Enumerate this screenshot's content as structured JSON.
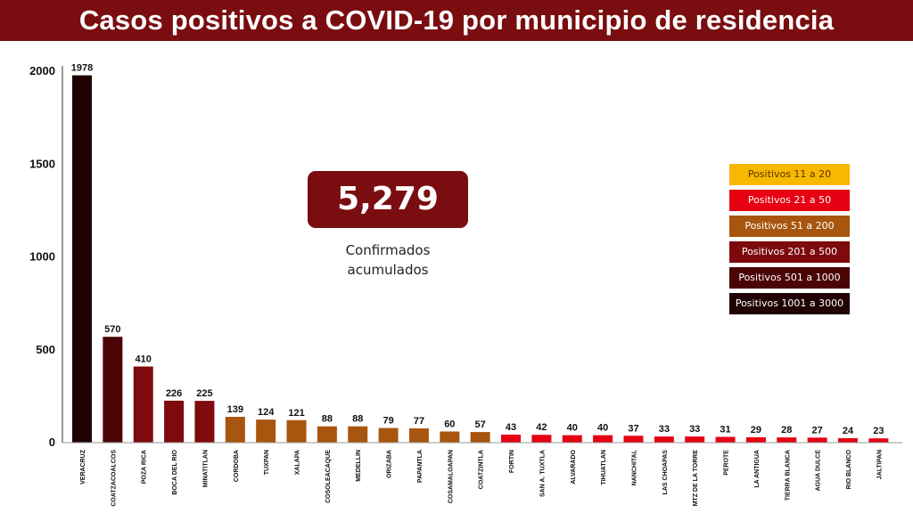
{
  "header": {
    "title": "Casos positivos a COVID-19  por municipio de residencia"
  },
  "summary": {
    "total": "5,279",
    "caption_line1": "Confirmados",
    "caption_line2": "acumulados"
  },
  "legend": [
    {
      "label": "Positivos 11 a 20",
      "color": "#f9b800"
    },
    {
      "label": "Positivos 21 a 50",
      "color": "#e60012"
    },
    {
      "label": "Positivos 51 a 200",
      "color": "#a8560f"
    },
    {
      "label": "Positivos 201 a 500",
      "color": "#7e0a0d"
    },
    {
      "label": "Positivos 501 a 1000",
      "color": "#4a0406"
    },
    {
      "label": "Positivos 1001 a 3000",
      "color": "#200203"
    }
  ],
  "chart_data": {
    "type": "bar",
    "title": "Casos positivos a COVID-19  por municipio de residencia",
    "xlabel": "",
    "ylabel": "",
    "ylim": [
      0,
      2000
    ],
    "yticks": [
      0,
      500,
      1000,
      1500,
      2000
    ],
    "grid": false,
    "legend_position": "right",
    "categories": [
      "VERACRUZ",
      "COATZACOALCOS",
      "POZA RICA",
      "BOCA DEL RIO",
      "MINATITLAN",
      "CORDOBA",
      "TUXPAN",
      "XALAPA",
      "COSOLEACAQUE",
      "MEDELLIN",
      "ORIZABA",
      "PAPANTLA",
      "COSAMALOAPAN",
      "COATZINTLA",
      "FORTIN",
      "SAN A. TUXTLA",
      "ALVARADO",
      "TIHUATLAN",
      "NANCHITAL",
      "LAS CHOAPAS",
      "MTZ DE LA TORRE",
      "PEROTE",
      "LA ANTIGUA",
      "TIERRA BLANCA",
      "AGUA DULCE",
      "RIO BLANCO",
      "JALTIPAN"
    ],
    "values": [
      1978,
      570,
      410,
      226,
      225,
      139,
      124,
      121,
      88,
      88,
      79,
      77,
      60,
      57,
      43,
      42,
      40,
      40,
      37,
      33,
      33,
      31,
      29,
      28,
      27,
      24,
      23
    ],
    "bar_colors": [
      "#200203",
      "#4a0406",
      "#7e0a0d",
      "#7e0a0d",
      "#7e0a0d",
      "#a8560f",
      "#a8560f",
      "#a8560f",
      "#a8560f",
      "#a8560f",
      "#a8560f",
      "#a8560f",
      "#a8560f",
      "#a8560f",
      "#e60012",
      "#e60012",
      "#e60012",
      "#e60012",
      "#e60012",
      "#e60012",
      "#e60012",
      "#e60012",
      "#e60012",
      "#e60012",
      "#e60012",
      "#e60012",
      "#e60012"
    ]
  }
}
